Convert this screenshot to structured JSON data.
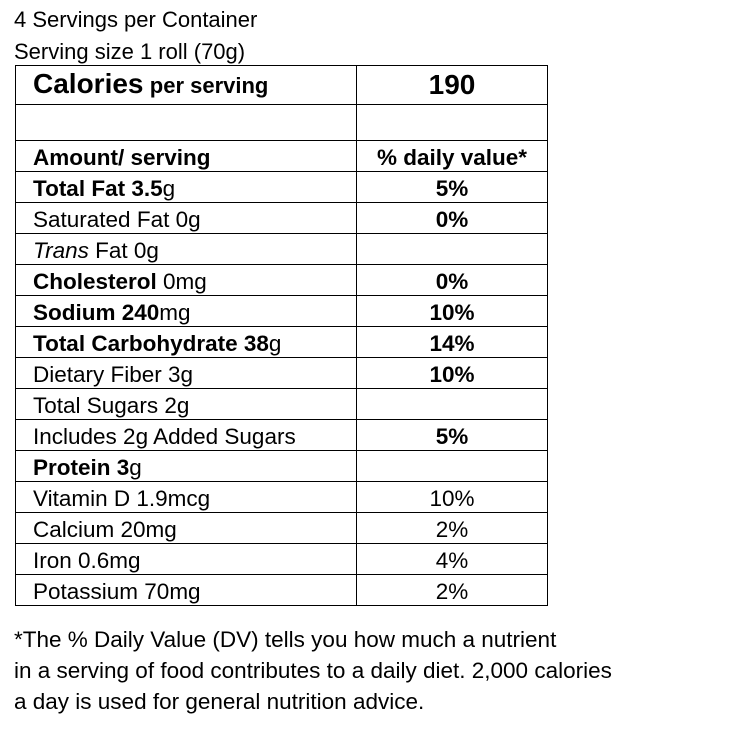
{
  "header": {
    "servings_line": "4 Servings per Container",
    "serving_size_line": "Serving size 1 roll (70g)"
  },
  "calories": {
    "label": "Calories",
    "sublabel": "per serving",
    "value": "190"
  },
  "columns": {
    "amount": "Amount/ serving",
    "daily": "% daily value*"
  },
  "rows": [
    {
      "bold": "Total Fat 3.5",
      "rest": "g",
      "dv": "5%",
      "dv_bold": true
    },
    {
      "plain": "Saturated Fat 0g",
      "dv": "0%",
      "dv_bold": true
    },
    {
      "italic": "Trans",
      "rest": " Fat 0g",
      "dv": ""
    },
    {
      "bold": "Cholesterol",
      "rest": " 0mg",
      "dv": "0%",
      "dv_bold": true
    },
    {
      "bold": "Sodium 240",
      "rest": "mg",
      "dv": "10%",
      "dv_bold": true
    },
    {
      "bold": "Total Carbohydrate 38",
      "rest": "g",
      "dv": "14%",
      "dv_bold": true
    },
    {
      "plain": "Dietary Fiber 3g",
      "dv": "10%",
      "dv_bold": true
    },
    {
      "plain": "Total Sugars 2g",
      "dv": ""
    },
    {
      "plain": "Includes 2g Added Sugars",
      "dv": "5%",
      "dv_bold": true
    },
    {
      "bold": "Protein 3",
      "rest": "g",
      "dv": ""
    },
    {
      "plain": "Vitamin D 1.9mcg",
      "dv": "10%",
      "dv_bold": false
    },
    {
      "plain": "Calcium 20mg",
      "dv": "2%",
      "dv_bold": false
    },
    {
      "plain": "Iron 0.6mg",
      "dv": "4%",
      "dv_bold": false
    },
    {
      "plain": "Potassium 70mg",
      "dv": "2%",
      "dv_bold": false
    }
  ],
  "footnote": [
    "*The % Daily Value (DV) tells you how much a nutrient",
    "in a serving of food contributes to a daily diet. 2,000 calories",
    "a day is used for general nutrition advice."
  ]
}
